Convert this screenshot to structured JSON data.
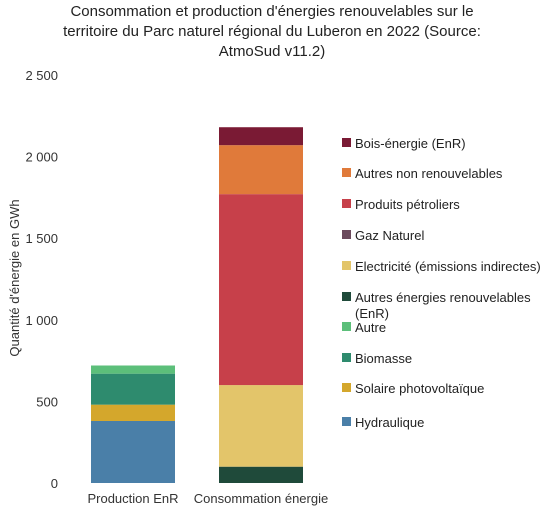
{
  "chart_data": {
    "type": "bar",
    "stacked": true,
    "title_lines": [
      "Consommation et production d'énergies renouvelables sur le",
      "territoire du Parc naturel régional du Luberon en 2022 (Source:",
      "AtmoSud v11.2)"
    ],
    "ylabel": "Quantité d'énergie en GWh",
    "ylim": [
      0,
      2500
    ],
    "yticks": [
      0,
      500,
      1000,
      1500,
      2000,
      2500
    ],
    "ytick_labels": [
      "0",
      "500",
      "1 000",
      "1 500",
      "2 000",
      "2 500"
    ],
    "categories": [
      "Production EnR",
      "Consommation énergie"
    ],
    "grid": false,
    "legend_position": "right",
    "series": [
      {
        "name": "Hydraulique",
        "color": "#4a7fa8",
        "values": [
          380,
          0
        ]
      },
      {
        "name": "Solaire photovoltaïque",
        "color": "#d4a72c",
        "values": [
          100,
          0
        ]
      },
      {
        "name": "Biomasse",
        "color": "#2e8b6e",
        "values": [
          190,
          0
        ]
      },
      {
        "name": "Autre",
        "color": "#5cbf7a",
        "values": [
          50,
          0
        ]
      },
      {
        "name": "Autres énergies renouvelables (EnR)",
        "color": "#1f4a3a",
        "values": [
          0,
          100
        ]
      },
      {
        "name": "Electricité (émissions indirectes)",
        "color": "#e3c56a",
        "values": [
          0,
          500
        ]
      },
      {
        "name": "Gaz Naturel",
        "color": "#6b4a5c",
        "values": [
          0,
          0
        ]
      },
      {
        "name": "Produits pétroliers",
        "color": "#c7404a",
        "values": [
          0,
          1170
        ]
      },
      {
        "name": "Autres non renouvelables",
        "color": "#e07a3a",
        "values": [
          0,
          300
        ]
      },
      {
        "name": "Bois-énergie (EnR)",
        "color": "#7a1a34",
        "values": [
          0,
          110
        ]
      }
    ],
    "legend_order": [
      "Bois-énergie (EnR)",
      "Autres non renouvelables",
      "Produits pétroliers",
      "Gaz Naturel",
      "Electricité (émissions indirectes)",
      "Autres énergies renouvelables (EnR)",
      "Autre",
      "Biomasse",
      "Solaire photovoltaïque",
      "Hydraulique"
    ]
  }
}
